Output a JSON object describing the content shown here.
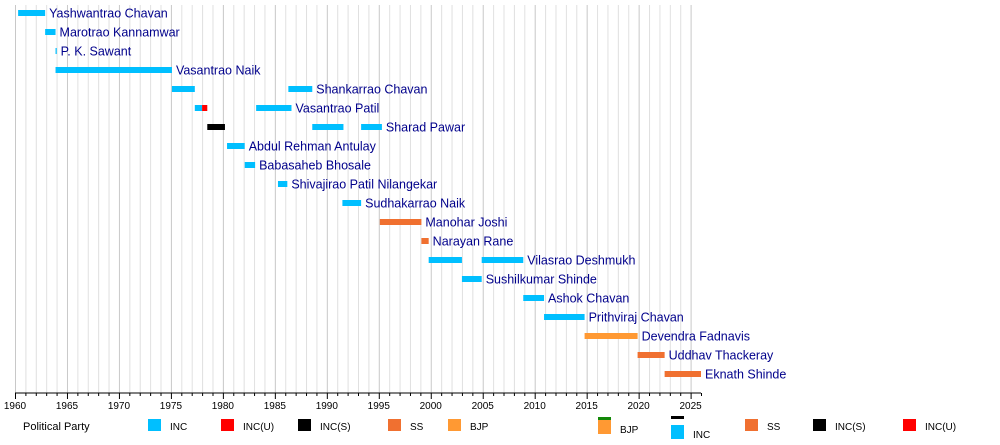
{
  "chart_data": {
    "type": "timeline",
    "xlim": [
      1960,
      2026
    ],
    "x_tick_labels": [
      "1960",
      "1965",
      "1970",
      "1975",
      "1980",
      "1985",
      "1990",
      "1995",
      "2000",
      "2005",
      "2010",
      "2015",
      "2020",
      "2025"
    ],
    "colors": {
      "INC": "#00BFFF",
      "INC(U)": "#FF0000",
      "INC(S)": "#000000",
      "SS": "#F07030",
      "BJP": "#FF9933"
    },
    "rows": [
      {
        "label": "Yashwantrao Chavan",
        "segments": [
          {
            "start": 1960.3,
            "end": 1962.9,
            "party": "INC"
          }
        ]
      },
      {
        "label": "Marotrao Kannamwar",
        "segments": [
          {
            "start": 1962.9,
            "end": 1963.9,
            "party": "INC"
          }
        ]
      },
      {
        "label": "P. K. Sawant",
        "segments": [
          {
            "start": 1963.9,
            "end": 1964.0,
            "party": "INC"
          }
        ]
      },
      {
        "label": "Vasantrao Naik",
        "segments": [
          {
            "start": 1963.9,
            "end": 1975.1,
            "party": "INC"
          }
        ]
      },
      {
        "label": "Shankarrao Chavan",
        "segments": [
          {
            "start": 1975.1,
            "end": 1977.3,
            "party": "INC"
          },
          {
            "start": 1986.3,
            "end": 1988.6,
            "party": "INC"
          }
        ]
      },
      {
        "label": "Vasantrao Patil",
        "segments": [
          {
            "start": 1977.3,
            "end": 1978.0,
            "party": "INC"
          },
          {
            "start": 1978.0,
            "end": 1978.5,
            "party": "INC(U)"
          },
          {
            "start": 1983.2,
            "end": 1986.6,
            "party": "INC"
          }
        ]
      },
      {
        "label": "Sharad Pawar",
        "segments": [
          {
            "start": 1978.5,
            "end": 1980.2,
            "party": "INC(S)"
          },
          {
            "start": 1988.6,
            "end": 1991.6,
            "party": "INC"
          },
          {
            "start": 1993.3,
            "end": 1995.3,
            "party": "INC"
          }
        ]
      },
      {
        "label": "Abdul Rehman Antulay",
        "segments": [
          {
            "start": 1980.4,
            "end": 1982.1,
            "party": "INC"
          }
        ]
      },
      {
        "label": "Babasaheb Bhosale",
        "segments": [
          {
            "start": 1982.1,
            "end": 1983.1,
            "party": "INC"
          }
        ]
      },
      {
        "label": "Shivajirao Patil Nilangekar",
        "segments": [
          {
            "start": 1985.3,
            "end": 1986.2,
            "party": "INC"
          }
        ]
      },
      {
        "label": "Sudhakarrao Naik",
        "segments": [
          {
            "start": 1991.5,
            "end": 1993.3,
            "party": "INC"
          }
        ]
      },
      {
        "label": "Manohar Joshi",
        "segments": [
          {
            "start": 1995.1,
            "end": 1999.1,
            "party": "SS"
          }
        ]
      },
      {
        "label": "Narayan Rane",
        "segments": [
          {
            "start": 1999.1,
            "end": 1999.8,
            "party": "SS"
          }
        ]
      },
      {
        "label": "Vilasrao Deshmukh",
        "segments": [
          {
            "start": 1999.8,
            "end": 2003.0,
            "party": "INC"
          },
          {
            "start": 2004.9,
            "end": 2008.9,
            "party": "INC"
          }
        ]
      },
      {
        "label": "Sushilkumar Shinde",
        "segments": [
          {
            "start": 2003.0,
            "end": 2004.9,
            "party": "INC"
          }
        ]
      },
      {
        "label": "Ashok Chavan",
        "segments": [
          {
            "start": 2008.9,
            "end": 2010.9,
            "party": "INC"
          }
        ]
      },
      {
        "label": "Prithviraj Chavan",
        "segments": [
          {
            "start": 2010.9,
            "end": 2014.8,
            "party": "INC"
          }
        ]
      },
      {
        "label": "Devendra Fadnavis",
        "segments": [
          {
            "start": 2014.8,
            "end": 2019.9,
            "party": "BJP"
          }
        ]
      },
      {
        "label": "Uddhav Thackeray",
        "segments": [
          {
            "start": 2019.9,
            "end": 2022.5,
            "party": "SS"
          }
        ]
      },
      {
        "label": "Eknath Shinde",
        "segments": [
          {
            "start": 2022.5,
            "end": 2026.0,
            "party": "SS"
          }
        ]
      }
    ],
    "legend": {
      "title": "Political Party",
      "items": [
        {
          "label": "INC",
          "party": "INC"
        },
        {
          "label": "INC(U)",
          "party": "INC(U)"
        },
        {
          "label": "INC(S)",
          "party": "INC(S)"
        },
        {
          "label": "SS",
          "party": "SS"
        },
        {
          "label": "BJP",
          "party": "BJP"
        }
      ],
      "items_right": [
        {
          "label": "BJP",
          "party": "BJP",
          "top_accent": "#138808"
        },
        {
          "label": "INC",
          "party": "INC",
          "top_accent": "#000000"
        },
        {
          "label": "SS",
          "party": "SS"
        },
        {
          "label": "INC(S)",
          "party": "INC(S)"
        },
        {
          "label": "INC(U)",
          "party": "INC(U)"
        }
      ]
    }
  }
}
